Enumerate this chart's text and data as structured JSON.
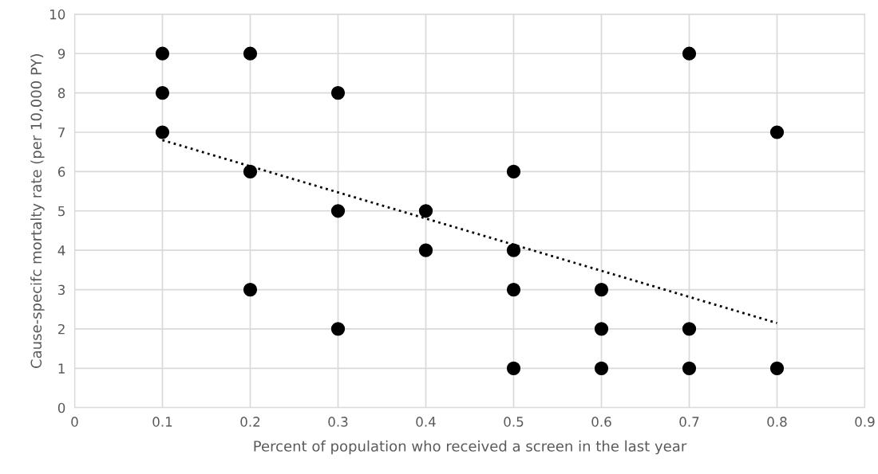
{
  "chart_data": {
    "type": "scatter",
    "xlabel": "Percent of population who received a screen in the last year",
    "ylabel": "Cause-specifc mortalty rate (per 10,000 PY)",
    "series": [
      {
        "color": "#000000",
        "marker": "circle",
        "x": [
          0.1,
          0.1,
          0.1,
          0.2,
          0.2,
          0.2,
          0.3,
          0.3,
          0.3,
          0.4,
          0.4,
          0.5,
          0.5,
          0.5,
          0.5,
          0.6,
          0.6,
          0.6,
          0.7,
          0.7,
          0.7,
          0.8,
          0.8
        ],
        "values": [
          9,
          8,
          7,
          9,
          6,
          3,
          8,
          5,
          2,
          5,
          4,
          6,
          4,
          3,
          1,
          3,
          2,
          1,
          9,
          2,
          1,
          7,
          1
        ]
      },
      {
        "type": "line",
        "color": "#000000",
        "line_style": "dotted",
        "marker": "none",
        "x": [
          0.1,
          0.8
        ],
        "values": [
          6.8,
          2.15
        ]
      }
    ],
    "xlim": [
      0,
      0.9
    ],
    "xticks": [
      0,
      0.1,
      0.2,
      0.3,
      0.4,
      0.5,
      0.6,
      0.7,
      0.8,
      0.9
    ],
    "ylim": [
      0,
      10
    ],
    "yticks": [
      0,
      1,
      2,
      3,
      4,
      5,
      6,
      7,
      8,
      9,
      10
    ],
    "grid": true
  }
}
